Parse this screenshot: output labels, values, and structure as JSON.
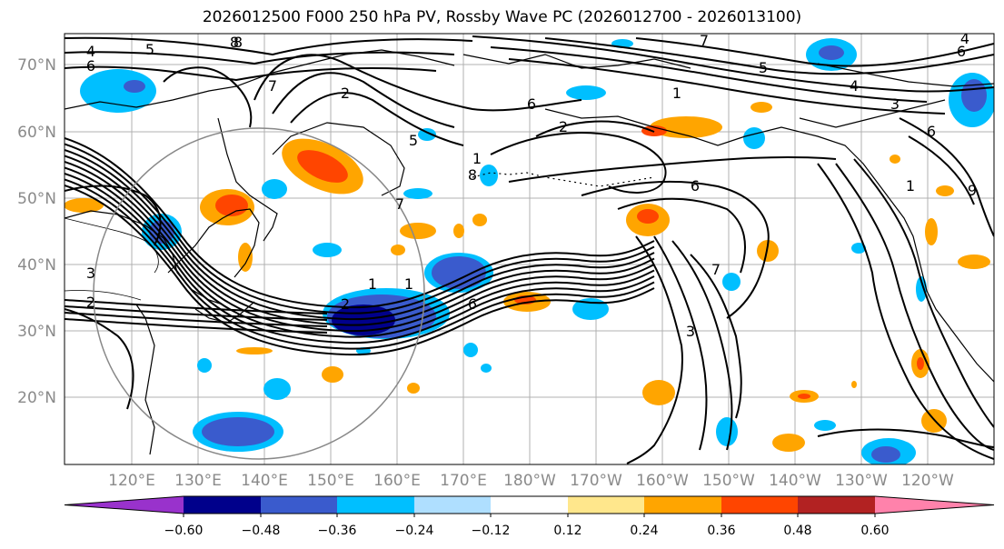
{
  "title": "2026012500 F000 250 hPa PV, Rossby Wave PC (2026012700 - 2026013100)",
  "lat_labels": [
    "70°N",
    "60°N",
    "50°N",
    "40°N",
    "30°N",
    "20°N"
  ],
  "lon_labels": [
    "120°E",
    "130°E",
    "140°E",
    "150°E",
    "160°E",
    "170°E",
    "180°W",
    "170°W",
    "160°W",
    "150°W",
    "140°W",
    "130°W",
    "120°W"
  ],
  "colorbar": {
    "ticks": [
      "−0.60",
      "−0.48",
      "−0.36",
      "−0.24",
      "−0.12",
      "0.12",
      "0.24",
      "0.36",
      "0.48",
      "0.60"
    ],
    "colors": [
      "#9932cc",
      "#00008b",
      "#3a5bcd",
      "#00bfff",
      "#afdfff",
      "#ffffff",
      "#ffe78c",
      "#ffa500",
      "#ff4500",
      "#b22222",
      "#ff82ab"
    ]
  },
  "contour_labels": [
    "4",
    "5",
    "8",
    "6",
    "7",
    "2",
    "6",
    "5",
    "7",
    "8",
    "1",
    "6",
    "1",
    "2",
    "6",
    "1",
    "5",
    "4",
    "6",
    "4",
    "6",
    "1",
    "7",
    "3",
    "2",
    "3",
    "2",
    "1",
    "3",
    "9",
    "8",
    "7"
  ],
  "colors": {
    "negative_core": "#00008b",
    "positive_core": "#ff4500"
  }
}
